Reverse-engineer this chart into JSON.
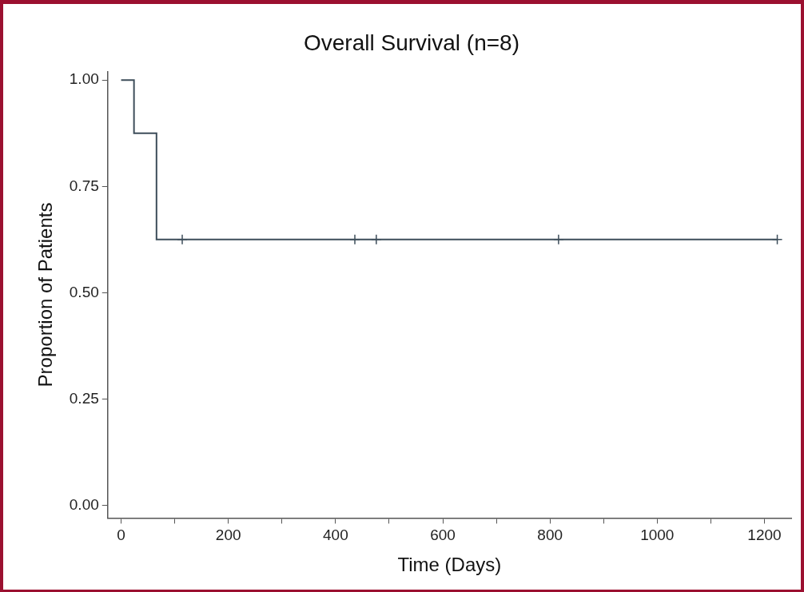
{
  "chart_data": {
    "type": "step",
    "title": "Overall Survival (n=8)",
    "xlabel": "Time (Days)",
    "ylabel": "Proportion of Patients",
    "series": [
      {
        "color": "#3d4d5a",
        "x": [
          0,
          24,
          66,
          1224
        ],
        "values": [
          1,
          0.875,
          0.625,
          0.625
        ]
      },
      {
        "type": "scatter",
        "marker": "cross",
        "color": "#3d4d5a",
        "x": [
          114,
          436,
          476,
          816,
          1224
        ],
        "values": [
          0.625,
          0.625,
          0.625,
          0.625,
          0.625
        ]
      }
    ],
    "xlim": [
      -25,
      1250
    ],
    "ylim": [
      -0.03,
      1.02
    ],
    "xticks": [
      0,
      {
        "value": 100,
        "label": null
      },
      200,
      {
        "value": 300,
        "label": null
      },
      400,
      {
        "value": 500,
        "label": null
      },
      600,
      {
        "value": 700,
        "label": null
      },
      800,
      {
        "value": 900,
        "label": null
      },
      1000,
      {
        "value": 1100,
        "label": null
      },
      1200
    ],
    "yticks": [
      {
        "value": 0,
        "label": "0.00"
      },
      {
        "value": 0.25,
        "label": "0.25"
      },
      {
        "value": 0.5,
        "label": "0.50"
      },
      {
        "value": 0.75,
        "label": "0.75"
      },
      {
        "value": 1,
        "label": "1.00"
      }
    ],
    "grid": false,
    "legend": false
  }
}
